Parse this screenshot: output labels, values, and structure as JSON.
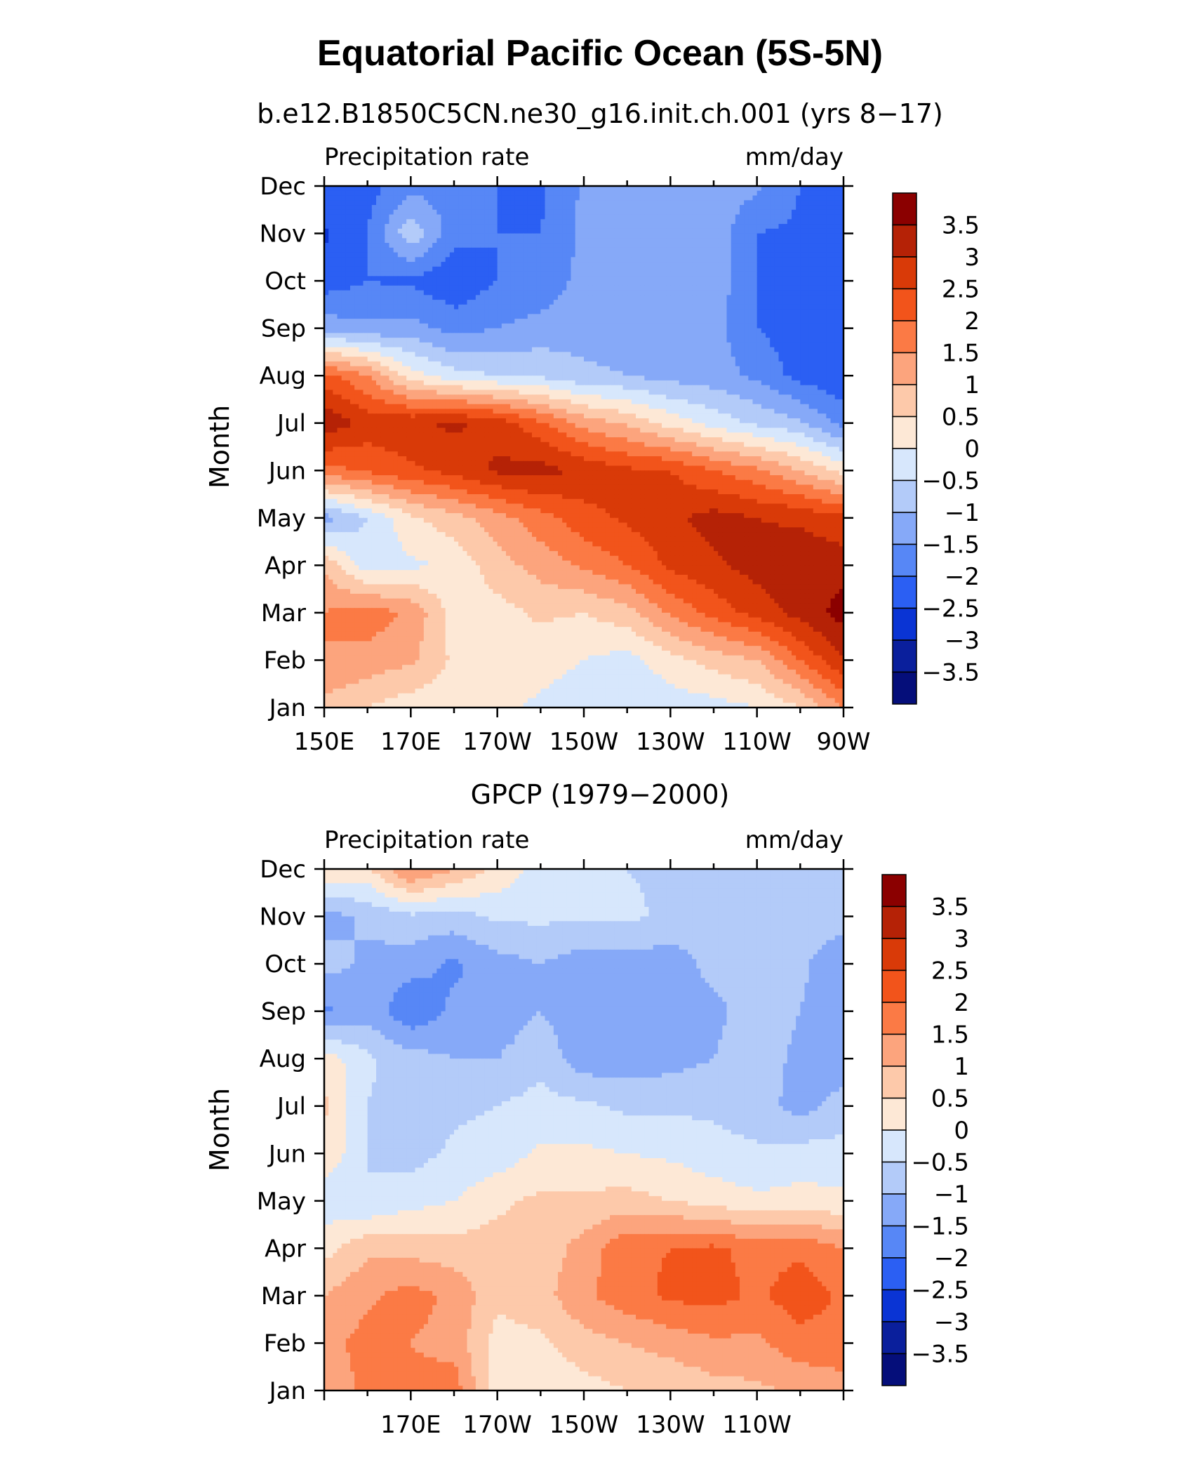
{
  "figure": {
    "title": "Equatorial Pacific Ocean (5S-5N)"
  },
  "colorbar": {
    "levels": [
      "3.5",
      "3",
      "2.5",
      "2",
      "1.5",
      "1",
      "0.5",
      "0",
      "−0.5",
      "−1",
      "−1.5",
      "−2",
      "−2.5",
      "−3",
      "−3.5"
    ],
    "colors": [
      "#8b0000",
      "#b52206",
      "#d93a08",
      "#f2541b",
      "#fb7a45",
      "#fca47d",
      "#fdc9aa",
      "#fde8d6",
      "#d7e7fc",
      "#b3cbf9",
      "#86a9f8",
      "#5787f6",
      "#2b5ff3",
      "#0a34d4",
      "#0a1f9c",
      "#050e7a"
    ]
  },
  "chart_data": [
    {
      "type": "heatmap",
      "title": "b.e12.B1850C5CN.ne30_g16.init.ch.001 (yrs 8−17)",
      "left_label": "Precipitation rate",
      "right_label": "mm/day",
      "ylabel": "Month",
      "y_ticks": [
        "Jan",
        "Feb",
        "Mar",
        "Apr",
        "May",
        "Jun",
        "Jul",
        "Aug",
        "Sep",
        "Oct",
        "Nov",
        "Dec"
      ],
      "x_ticks": [
        "150E",
        "170E",
        "170W",
        "150W",
        "130W",
        "110W",
        "90W"
      ],
      "x_range": [
        150,
        270
      ],
      "x": [
        150,
        160,
        170,
        180,
        190,
        200,
        210,
        220,
        230,
        240,
        250,
        260,
        270
      ],
      "y": [
        1,
        2,
        3,
        4,
        5,
        6,
        7,
        8,
        9,
        10,
        11,
        12
      ],
      "z": [
        [
          0.8,
          0.5,
          0.2,
          0.2,
          0.1,
          -0.1,
          -0.3,
          -0.4,
          -0.3,
          -0.2,
          0.0,
          0.5,
          1.5
        ],
        [
          1.5,
          1.3,
          1.1,
          0.4,
          0.3,
          0.2,
          0.0,
          -0.2,
          0.3,
          0.7,
          1.0,
          2.0,
          3.0
        ],
        [
          1.5,
          1.8,
          1.4,
          0.3,
          0.3,
          0.6,
          0.5,
          0.8,
          1.6,
          2.2,
          2.7,
          3.2,
          3.7
        ],
        [
          0.9,
          -0.3,
          -0.1,
          0.1,
          0.8,
          1.2,
          1.6,
          2.0,
          2.6,
          2.9,
          3.2,
          3.4,
          3.3
        ],
        [
          -1.2,
          -0.5,
          0.4,
          0.8,
          1.3,
          1.8,
          2.3,
          2.6,
          2.9,
          3.2,
          3.0,
          2.9,
          2.6
        ],
        [
          1.8,
          2.1,
          2.4,
          2.7,
          3.1,
          3.2,
          2.9,
          2.6,
          2.5,
          2.0,
          1.6,
          1.0,
          0.3
        ],
        [
          3.4,
          2.8,
          2.9,
          3.1,
          2.8,
          2.1,
          1.3,
          0.9,
          0.3,
          -0.2,
          -0.6,
          -0.9,
          -1.7
        ],
        [
          2.2,
          1.5,
          0.2,
          -0.3,
          -0.5,
          -0.6,
          -0.9,
          -1.0,
          -1.2,
          -1.3,
          -1.6,
          -2.2,
          -2.4
        ],
        [
          -1.2,
          -1.4,
          -1.3,
          -1.7,
          -1.5,
          -1.3,
          -1.2,
          -1.2,
          -1.2,
          -1.3,
          -2.0,
          -2.3,
          -2.4
        ],
        [
          -2.3,
          -2.0,
          -2.1,
          -2.4,
          -2.0,
          -1.9,
          -1.3,
          -1.2,
          -1.2,
          -1.2,
          -2.0,
          -2.1,
          -2.3
        ],
        [
          -2.6,
          -2.0,
          -0.6,
          -1.8,
          -2.0,
          -2.0,
          -1.4,
          -1.4,
          -1.3,
          -1.2,
          -2.0,
          -2.1,
          -2.2
        ],
        [
          -2.0,
          -2.2,
          -1.7,
          -1.7,
          -2.0,
          -2.1,
          -1.4,
          -1.4,
          -1.3,
          -1.2,
          -1.4,
          -2.0,
          -2.1
        ]
      ]
    },
    {
      "type": "heatmap",
      "title": "GPCP (1979−2000)",
      "left_label": "Precipitation rate",
      "right_label": "mm/day",
      "ylabel": "Month",
      "y_ticks": [
        "Jan",
        "Feb",
        "Mar",
        "Apr",
        "May",
        "Jun",
        "Jul",
        "Aug",
        "Sep",
        "Oct",
        "Nov",
        "Dec"
      ],
      "x_ticks": [
        "170E",
        "170W",
        "150W",
        "130W",
        "110W"
      ],
      "x_range": [
        150,
        270
      ],
      "x": [
        150,
        160,
        170,
        180,
        190,
        200,
        210,
        220,
        230,
        240,
        250,
        260,
        270
      ],
      "y": [
        1,
        2,
        3,
        4,
        5,
        6,
        7,
        8,
        9,
        10,
        11,
        12
      ],
      "z": [
        [
          1.2,
          1.6,
          1.6,
          1.8,
          0.2,
          0.1,
          0.3,
          0.5,
          0.6,
          0.8,
          0.9,
          1.1,
          1.3
        ],
        [
          1.3,
          1.7,
          1.5,
          1.3,
          0.3,
          0.4,
          0.8,
          1.0,
          1.2,
          1.4,
          1.4,
          1.8,
          1.8
        ],
        [
          1.0,
          1.4,
          1.7,
          1.4,
          0.6,
          0.8,
          1.4,
          1.8,
          2.1,
          2.2,
          1.9,
          2.3,
          1.9
        ],
        [
          0.3,
          0.9,
          0.8,
          0.7,
          0.7,
          0.7,
          1.2,
          1.9,
          2.0,
          2.1,
          1.8,
          1.9,
          1.5
        ],
        [
          -0.3,
          -0.5,
          -0.2,
          0.0,
          0.4,
          0.6,
          0.6,
          0.7,
          0.5,
          0.3,
          0.1,
          0.2,
          0.1
        ],
        [
          0.4,
          -0.5,
          -0.7,
          -0.4,
          -0.3,
          0.1,
          0.1,
          0.0,
          -0.1,
          -0.3,
          -0.4,
          -0.3,
          -0.3
        ],
        [
          0.6,
          -0.5,
          -0.8,
          -0.6,
          -0.5,
          -0.3,
          -0.4,
          -0.6,
          -0.6,
          -0.6,
          -0.8,
          -1.2,
          -0.8
        ],
        [
          0.3,
          -0.4,
          -0.8,
          -1.0,
          -1.0,
          -0.7,
          -1.3,
          -1.3,
          -1.2,
          -1.0,
          -0.6,
          -1.2,
          -1.3
        ],
        [
          -1.6,
          -1.2,
          -1.9,
          -1.4,
          -1.3,
          -1.0,
          -1.3,
          -1.3,
          -1.3,
          -1.2,
          -0.6,
          -1.0,
          -1.3
        ],
        [
          -0.8,
          -1.1,
          -1.3,
          -1.6,
          -1.2,
          -1.0,
          -1.3,
          -1.2,
          -1.3,
          -0.8,
          -0.6,
          -0.9,
          -1.4
        ],
        [
          -1.2,
          -0.9,
          -0.6,
          -0.7,
          -0.4,
          -0.4,
          -0.4,
          -0.4,
          -0.6,
          -0.7,
          -0.6,
          -0.7,
          -0.8
        ],
        [
          0.5,
          0.4,
          1.6,
          1.0,
          0.4,
          -0.2,
          -0.3,
          -0.5,
          -0.6,
          -0.6,
          -0.7,
          -0.7,
          -0.8
        ]
      ]
    }
  ]
}
